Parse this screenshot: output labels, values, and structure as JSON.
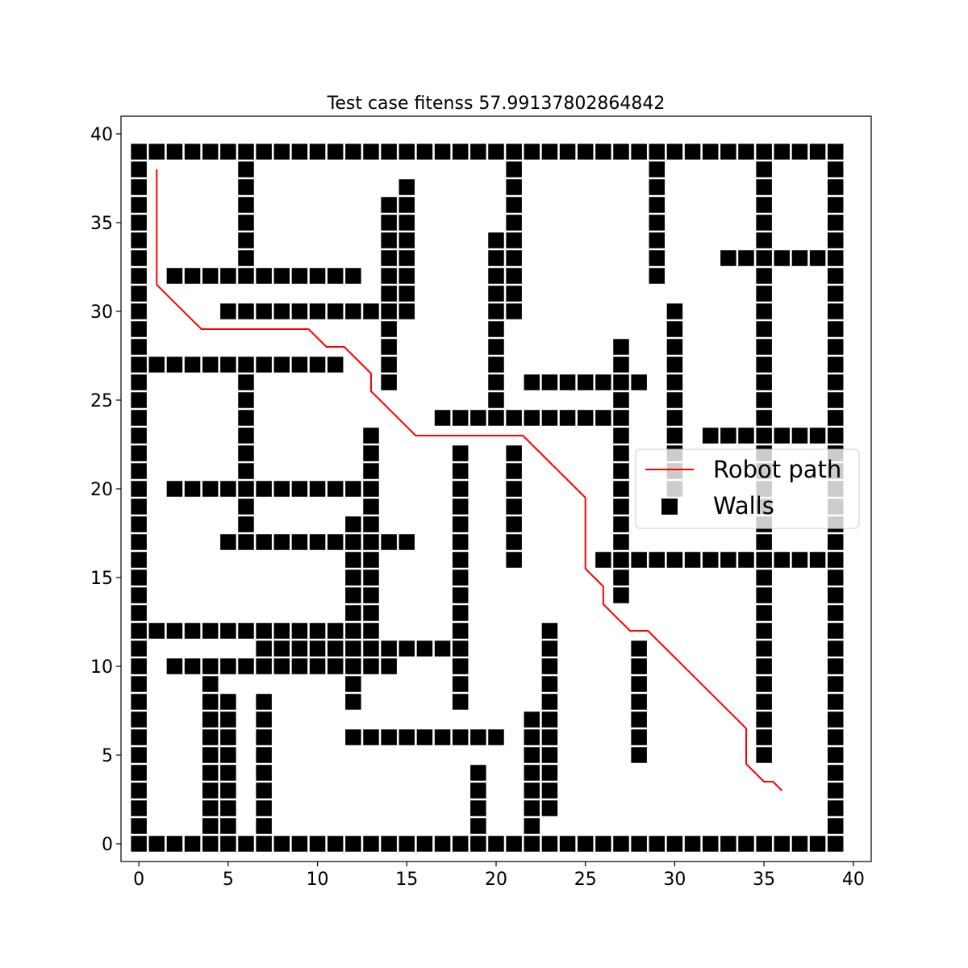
{
  "chart_data": {
    "type": "scatter",
    "title": "Test case fitenss 57.99137802864842",
    "xlabel": "",
    "ylabel": "",
    "xlim": [
      -1,
      41
    ],
    "ylim": [
      -1,
      41
    ],
    "xticks": [
      0,
      5,
      10,
      15,
      20,
      25,
      30,
      35,
      40
    ],
    "yticks": [
      0,
      5,
      10,
      15,
      20,
      25,
      30,
      35,
      40
    ],
    "xtick_labels": [
      "0",
      "5",
      "10",
      "15",
      "20",
      "25",
      "30",
      "35",
      "40"
    ],
    "ytick_labels": [
      "0",
      "5",
      "10",
      "15",
      "20",
      "25",
      "30",
      "35",
      "40"
    ],
    "grid": false,
    "legend_position": "center-right",
    "series": [
      {
        "name": "Robot path",
        "kind": "line",
        "color": "#ff0000",
        "points": [
          [
            1,
            38
          ],
          [
            1,
            31.5
          ],
          [
            3.5,
            29
          ],
          [
            9.5,
            29
          ],
          [
            10.5,
            28
          ],
          [
            11.5,
            28
          ],
          [
            13,
            26.5
          ],
          [
            13,
            25.5
          ],
          [
            15.5,
            23
          ],
          [
            21.5,
            23
          ],
          [
            25,
            19.5
          ],
          [
            25,
            15.5
          ],
          [
            26,
            14.5
          ],
          [
            26,
            13.5
          ],
          [
            27.5,
            12
          ],
          [
            28.5,
            12
          ],
          [
            34,
            6.5
          ],
          [
            34,
            4.5
          ],
          [
            35,
            3.5
          ],
          [
            35.5,
            3.5
          ],
          [
            36,
            3
          ]
        ]
      },
      {
        "name": "Walls",
        "kind": "scatter",
        "marker": "square",
        "color": "#000000",
        "cells_by_row": {
          "39": [
            [
              0,
              39
            ]
          ],
          "38": [
            0,
            6,
            21,
            29,
            35,
            39
          ],
          "37": [
            0,
            6,
            15,
            21,
            29,
            35,
            39
          ],
          "36": [
            0,
            6,
            14,
            15,
            21,
            29,
            35,
            39
          ],
          "35": [
            0,
            6,
            14,
            15,
            21,
            29,
            35,
            39
          ],
          "34": [
            0,
            6,
            14,
            15,
            20,
            21,
            29,
            35,
            39
          ],
          "33": [
            0,
            6,
            14,
            15,
            20,
            21,
            29,
            [
              33,
              39
            ]
          ],
          "32": [
            0,
            [
              2,
              12
            ],
            14,
            15,
            20,
            21,
            29,
            35,
            39
          ],
          "31": [
            0,
            14,
            15,
            20,
            21,
            35,
            39
          ],
          "30": [
            0,
            [
              5,
              15
            ],
            20,
            21,
            30,
            35,
            39
          ],
          "29": [
            0,
            14,
            20,
            30,
            35,
            39
          ],
          "28": [
            0,
            14,
            20,
            27,
            30,
            35,
            39
          ],
          "27": [
            [
              0,
              11
            ],
            14,
            20,
            27,
            30,
            35,
            39
          ],
          "26": [
            0,
            6,
            14,
            20,
            [
              22,
              28
            ],
            30,
            35,
            39
          ],
          "25": [
            0,
            6,
            20,
            27,
            30,
            35,
            39
          ],
          "24": [
            0,
            6,
            [
              17,
              27
            ],
            30,
            35,
            39
          ],
          "23": [
            0,
            6,
            13,
            27,
            30,
            [
              32,
              39
            ]
          ],
          "22": [
            0,
            6,
            13,
            18,
            21,
            27,
            30,
            35,
            39
          ],
          "21": [
            0,
            6,
            13,
            18,
            21,
            27,
            30,
            35,
            39
          ],
          "20": [
            0,
            [
              2,
              13
            ],
            18,
            21,
            27,
            30,
            35,
            39
          ],
          "19": [
            0,
            6,
            13,
            18,
            21,
            27,
            35,
            39
          ],
          "18": [
            0,
            6,
            12,
            13,
            18,
            21,
            27,
            35,
            39
          ],
          "17": [
            0,
            [
              5,
              15
            ],
            18,
            21,
            27,
            35,
            39
          ],
          "16": [
            0,
            12,
            13,
            18,
            21,
            [
              26,
              39
            ]
          ],
          "15": [
            0,
            12,
            13,
            18,
            27,
            35,
            39
          ],
          "14": [
            0,
            12,
            13,
            18,
            27,
            35,
            39
          ],
          "13": [
            0,
            12,
            13,
            18,
            35,
            39
          ],
          "12": [
            [
              0,
              13
            ],
            18,
            23,
            35,
            39
          ],
          "11": [
            0,
            [
              7,
              18
            ],
            23,
            28,
            35,
            39
          ],
          "10": [
            0,
            [
              2,
              14
            ],
            18,
            23,
            28,
            35,
            39
          ],
          "9": [
            0,
            4,
            12,
            18,
            23,
            28,
            35,
            39
          ],
          "8": [
            0,
            4,
            5,
            7,
            12,
            18,
            23,
            28,
            35,
            39
          ],
          "7": [
            0,
            4,
            5,
            7,
            22,
            23,
            28,
            35,
            39
          ],
          "6": [
            0,
            4,
            5,
            7,
            [
              12,
              20
            ],
            22,
            23,
            28,
            35,
            39
          ],
          "5": [
            0,
            4,
            5,
            7,
            22,
            23,
            28,
            35,
            39
          ],
          "4": [
            0,
            4,
            5,
            7,
            19,
            22,
            23,
            39
          ],
          "3": [
            0,
            4,
            5,
            7,
            19,
            22,
            23,
            39
          ],
          "2": [
            0,
            4,
            5,
            7,
            19,
            22,
            23,
            39
          ],
          "1": [
            0,
            4,
            5,
            7,
            19,
            22,
            39
          ],
          "0": [
            [
              0,
              39
            ]
          ]
        }
      }
    ]
  }
}
